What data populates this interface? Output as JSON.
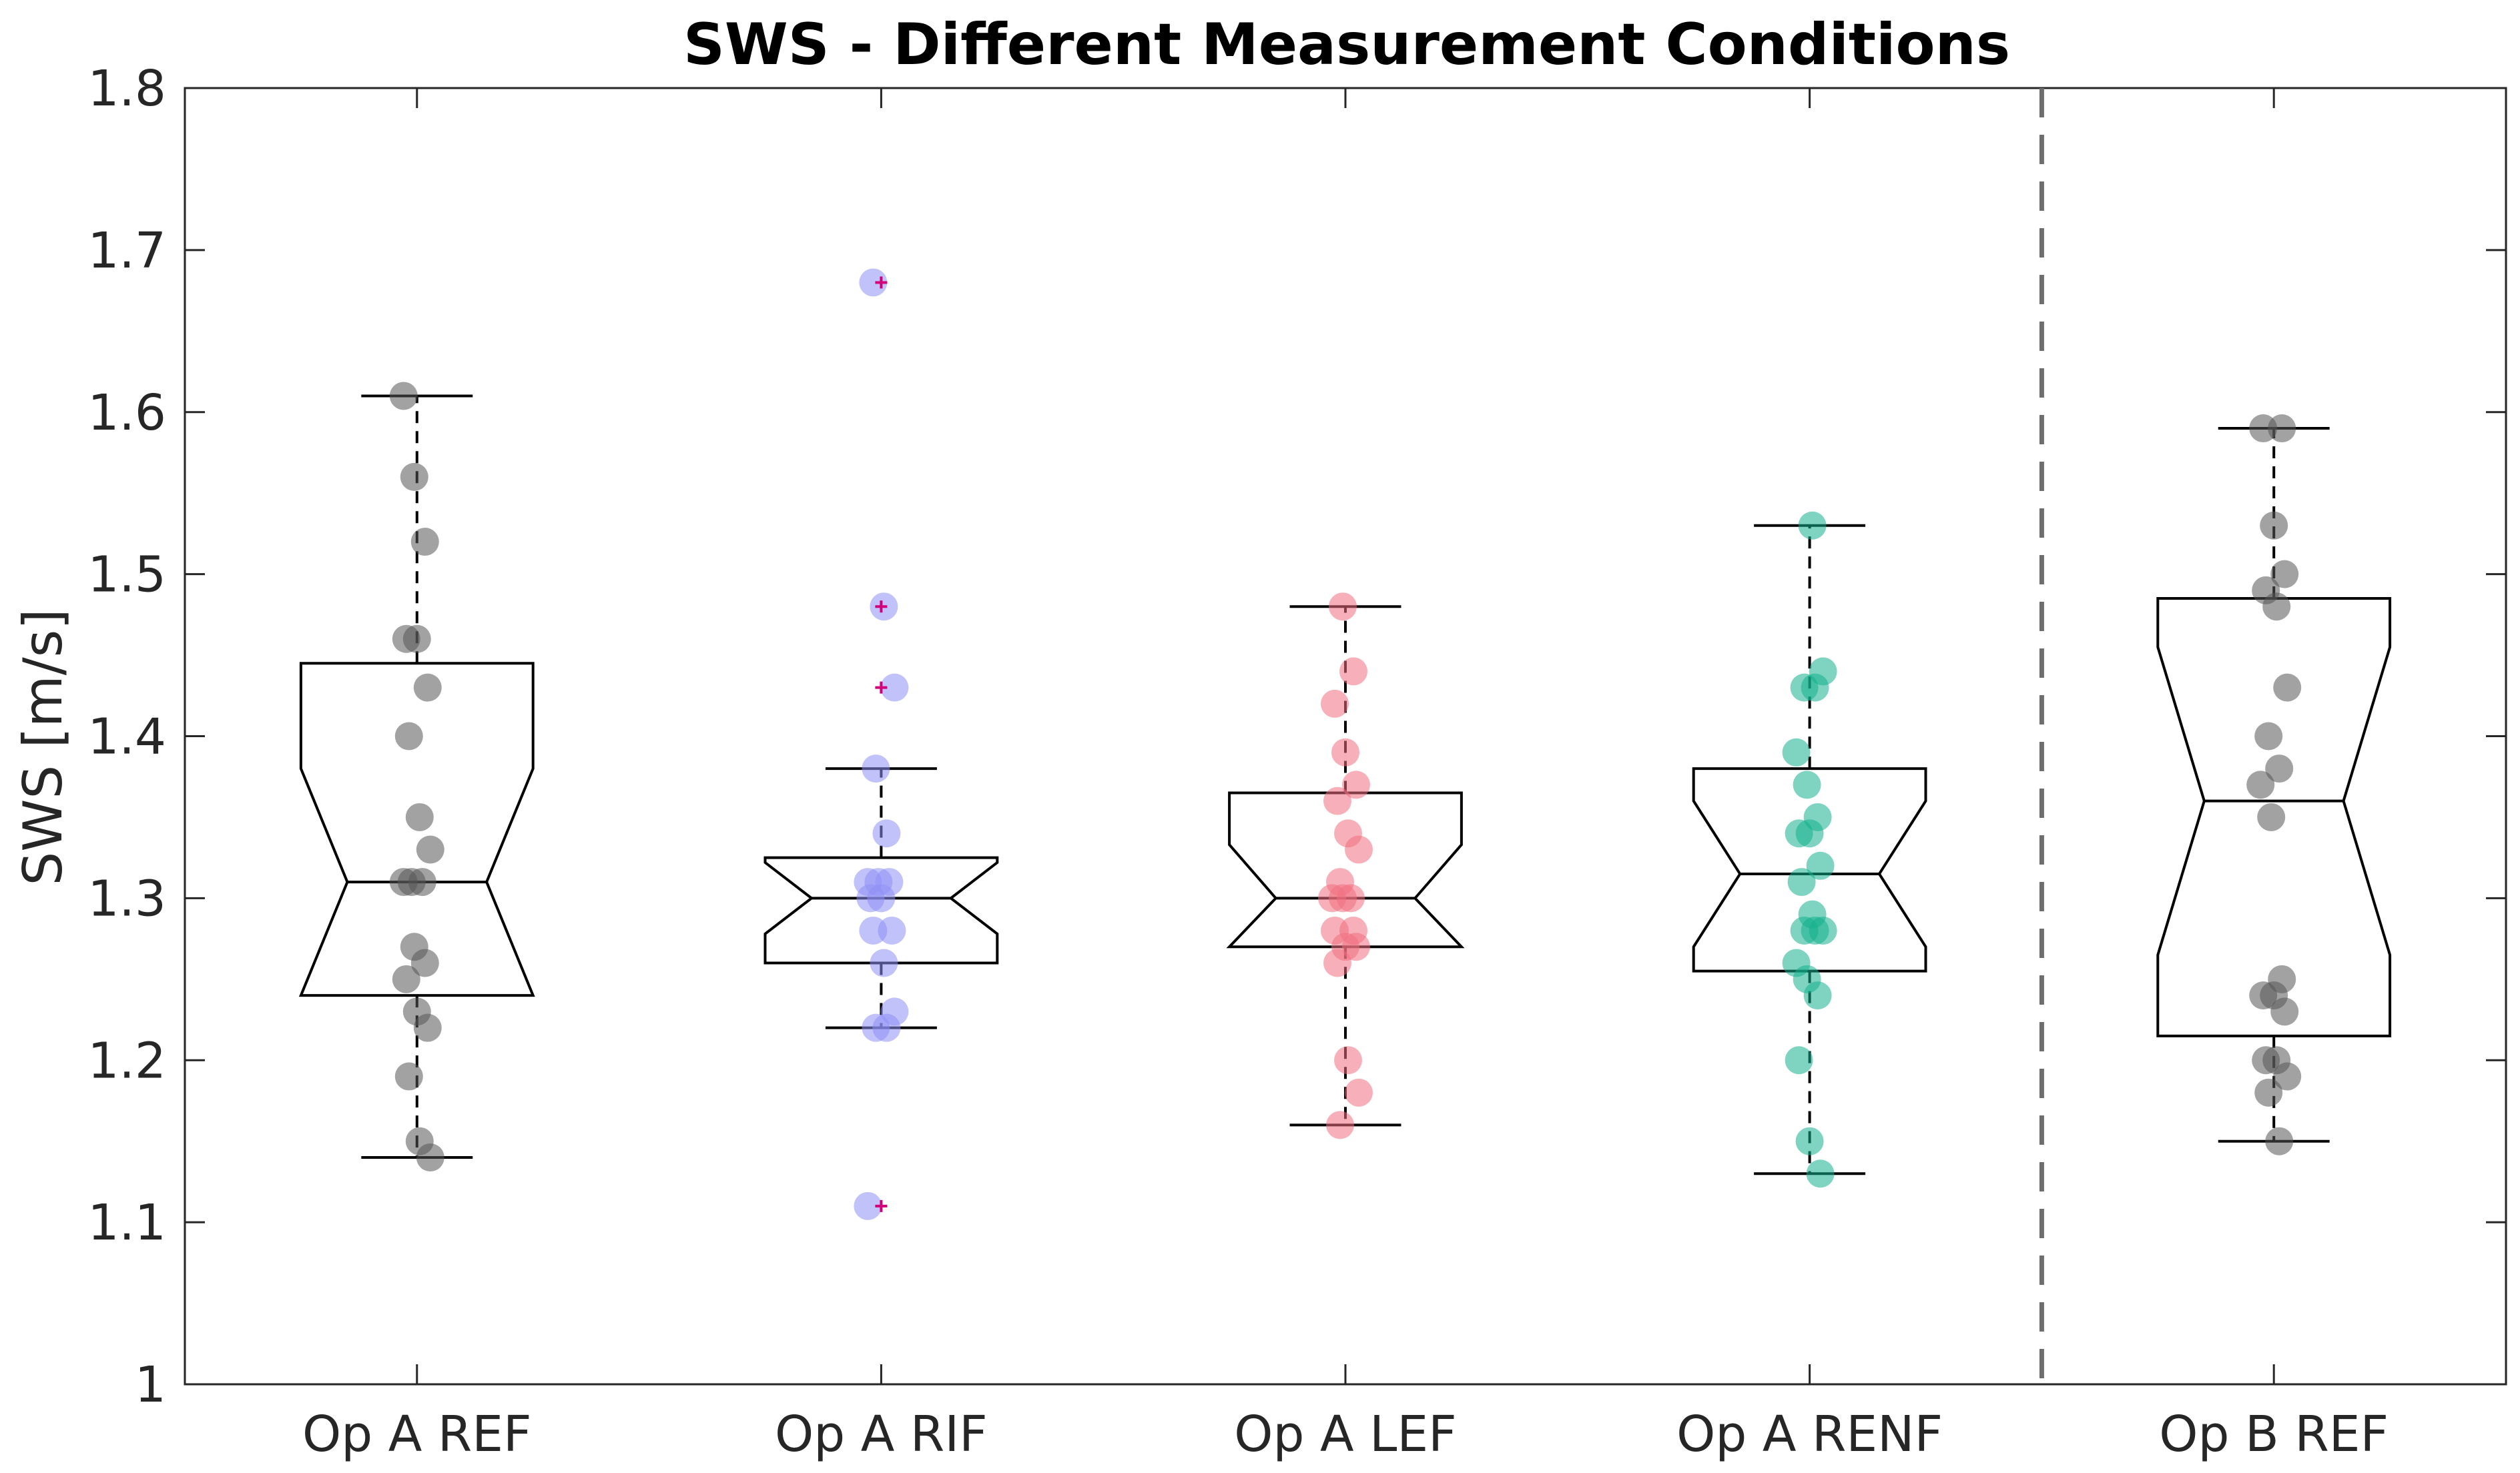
{
  "chart_data": {
    "type": "box",
    "title": "SWS - Different Measurement Conditions",
    "xlabel": "",
    "ylabel": "SWS [m/s]",
    "ylim": [
      1,
      1.8
    ],
    "yticks": [
      "1",
      "1.1",
      "1.2",
      "1.3",
      "1.4",
      "1.5",
      "1.6",
      "1.7",
      "1.8"
    ],
    "notched": true,
    "grid": false,
    "separator_after_category": 4,
    "categories": [
      "Op A REF",
      "Op A RIF",
      "Op A LEF",
      "Op A RENF",
      "Op B REF"
    ],
    "boxes": [
      {
        "name": "Op A REF",
        "color": "#555555",
        "q1": 1.24,
        "median": 1.31,
        "q3": 1.445,
        "notch_low": 1.24,
        "notch_high": 1.38,
        "whisker_low": 1.14,
        "whisker_high": 1.61,
        "outliers": [],
        "points": [
          1.61,
          1.56,
          1.52,
          1.46,
          1.46,
          1.43,
          1.4,
          1.35,
          1.33,
          1.31,
          1.31,
          1.31,
          1.27,
          1.26,
          1.25,
          1.23,
          1.22,
          1.19,
          1.15,
          1.14
        ]
      },
      {
        "name": "Op A RIF",
        "color": "#8f8ff5",
        "q1": 1.26,
        "median": 1.3,
        "q3": 1.325,
        "notch_low": 1.278,
        "notch_high": 1.322,
        "whisker_low": 1.22,
        "whisker_high": 1.38,
        "outliers": [
          1.68,
          1.48,
          1.43,
          1.11
        ],
        "points": [
          1.68,
          1.48,
          1.43,
          1.38,
          1.34,
          1.31,
          1.31,
          1.31,
          1.3,
          1.3,
          1.28,
          1.28,
          1.26,
          1.23,
          1.22,
          1.22,
          1.11
        ]
      },
      {
        "name": "Op A LEF",
        "color": "#f0707f",
        "q1": 1.27,
        "median": 1.3,
        "q3": 1.365,
        "notch_low": 1.268,
        "notch_high": 1.333,
        "whisker_low": 1.16,
        "whisker_high": 1.48,
        "outliers": [],
        "points": [
          1.48,
          1.44,
          1.42,
          1.39,
          1.37,
          1.36,
          1.34,
          1.33,
          1.31,
          1.3,
          1.3,
          1.3,
          1.28,
          1.28,
          1.27,
          1.27,
          1.26,
          1.2,
          1.18,
          1.16
        ]
      },
      {
        "name": "Op A RENF",
        "color": "#14b08c",
        "q1": 1.255,
        "median": 1.315,
        "q3": 1.38,
        "notch_low": 1.27,
        "notch_high": 1.36,
        "whisker_low": 1.13,
        "whisker_high": 1.53,
        "outliers": [],
        "points": [
          1.53,
          1.44,
          1.43,
          1.43,
          1.39,
          1.37,
          1.35,
          1.34,
          1.34,
          1.32,
          1.31,
          1.29,
          1.28,
          1.28,
          1.28,
          1.26,
          1.25,
          1.24,
          1.2,
          1.15,
          1.13
        ]
      },
      {
        "name": "Op B REF",
        "color": "#555555",
        "q1": 1.215,
        "median": 1.36,
        "q3": 1.485,
        "notch_low": 1.265,
        "notch_high": 1.455,
        "whisker_low": 1.15,
        "whisker_high": 1.59,
        "outliers": [],
        "points": [
          1.59,
          1.59,
          1.53,
          1.5,
          1.49,
          1.48,
          1.43,
          1.4,
          1.38,
          1.37,
          1.35,
          1.25,
          1.24,
          1.24,
          1.23,
          1.2,
          1.2,
          1.19,
          1.18,
          1.15
        ]
      }
    ]
  }
}
